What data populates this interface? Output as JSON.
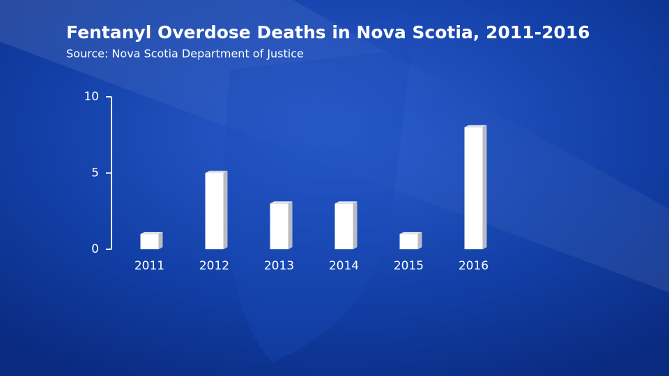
{
  "chart_data": {
    "type": "bar",
    "title": "Fentanyl Overdose Deaths in Nova Scotia, 2011-2016",
    "subtitle": "Source: Nova Scotia Department of Justice",
    "categories": [
      "2011",
      "2012",
      "2013",
      "2014",
      "2015",
      "2016"
    ],
    "values": [
      1,
      5,
      3,
      3,
      1,
      8
    ],
    "color": "#ffffff",
    "ylim": [
      0,
      10
    ],
    "yticks": [
      0,
      5,
      10
    ],
    "grid": false
  }
}
